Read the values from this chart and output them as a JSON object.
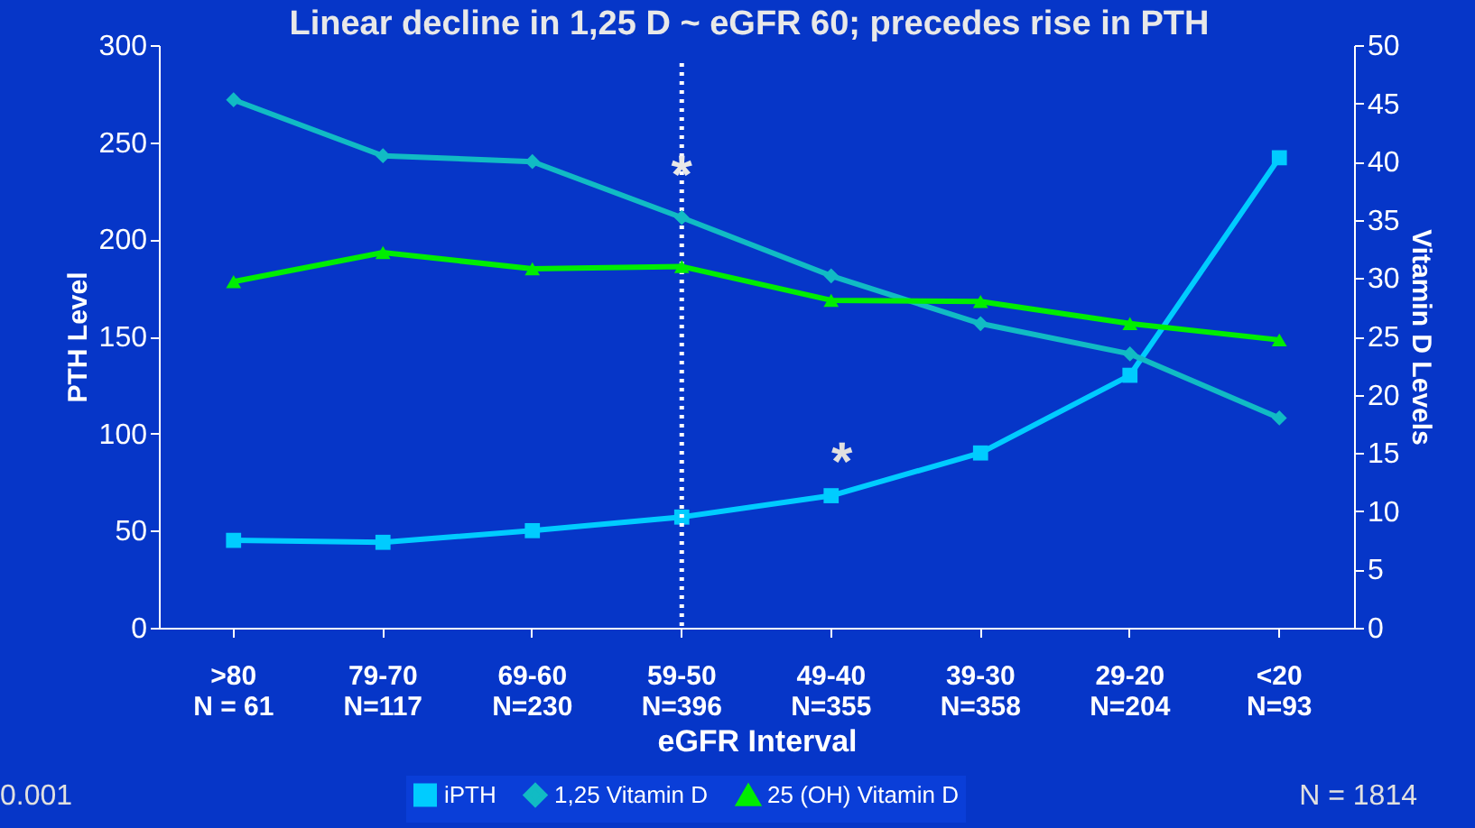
{
  "chart_data": {
    "type": "line",
    "title": "Linear decline in 1,25 D ~ eGFR 60; precedes rise in PTH",
    "categories": [
      ">80\nN = 61",
      "79-70\nN=117",
      "69-60\nN=230",
      "59-50\nN=396",
      "49-40\nN=355",
      "39-30\nN=358",
      "29-20\nN=204",
      "<20\nN=93"
    ],
    "xlabel": "eGFR Interval",
    "ylabel": "PTH Level",
    "y2label": "Vitamin D Levels",
    "series": [
      {
        "name": "iPTH",
        "color": "#00ccff",
        "marker": "square",
        "values": [
          45,
          44,
          50,
          57,
          68,
          90,
          130,
          242
        ]
      },
      {
        "name": "1,25 Vitamin D",
        "color": "#11bbc4",
        "marker": "diamond",
        "axis": "y2",
        "values": [
          45.3,
          40.5,
          40,
          35.2,
          30.2,
          26.1,
          23.5,
          18
        ]
      },
      {
        "name": "25 (OH) Vitamin D",
        "color": "#00ee00",
        "marker": "triangle",
        "axis": "y2",
        "values": [
          29.7,
          32.2,
          30.8,
          31,
          28.1,
          28,
          26.1,
          24.7
        ]
      }
    ],
    "ylim": [
      0,
      300
    ],
    "yticks": [
      0,
      50,
      100,
      150,
      200,
      250,
      300
    ],
    "y2lim": [
      0,
      50
    ],
    "y2ticks": [
      0,
      5,
      10,
      15,
      20,
      25,
      30,
      35,
      40,
      45,
      50
    ],
    "ref_lines": [
      {
        "axis": "x",
        "value": "59-50\nN=396",
        "color": "#ffffff",
        "line_style": "dotted"
      }
    ],
    "annotations": [
      {
        "text": "*",
        "x": "59-50\nN=396",
        "y": 232
      },
      "*",
      "0.001",
      "N = 1814"
    ],
    "legend": "bottom",
    "grid": false,
    "line_style": "solid"
  }
}
